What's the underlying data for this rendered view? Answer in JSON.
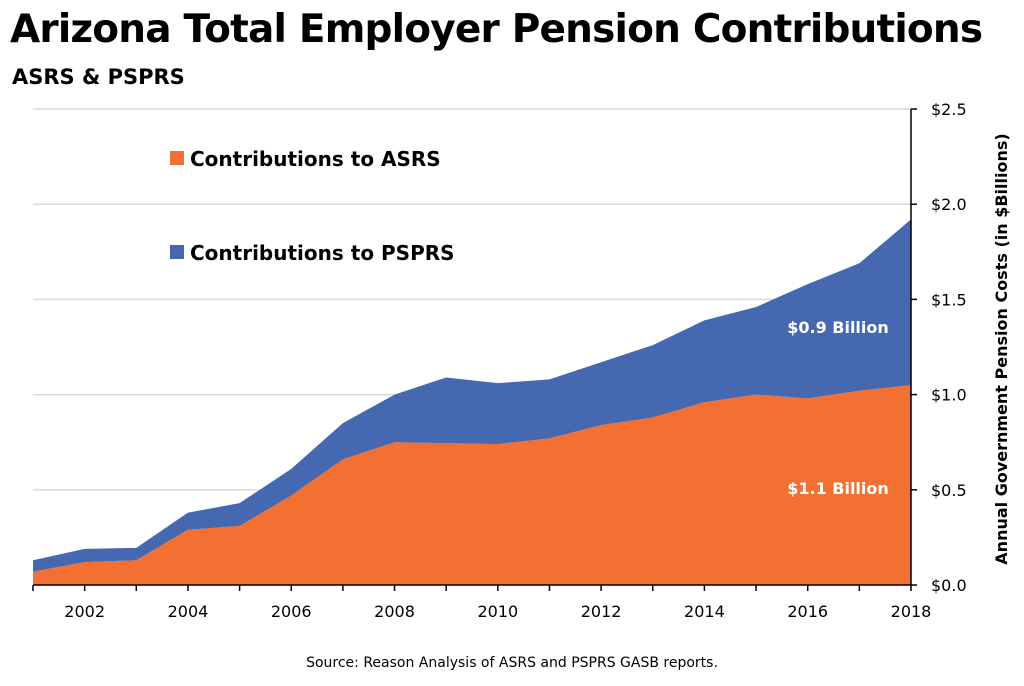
{
  "chart_data": {
    "type": "area",
    "stacked": true,
    "title": "Arizona Total Employer Pension Contributions",
    "subtitle": "ASRS & PSPRS",
    "ylabel": "Annual Government Pension Costs (in $Billions)",
    "xlabel": "",
    "x": [
      2001,
      2002,
      2003,
      2004,
      2005,
      2006,
      2007,
      2008,
      2009,
      2010,
      2011,
      2012,
      2013,
      2014,
      2015,
      2016,
      2017,
      2018
    ],
    "xlim": [
      2001,
      2018
    ],
    "ylim": [
      0,
      2.5
    ],
    "x_ticks": [
      "2002",
      "2004",
      "2006",
      "2008",
      "2010",
      "2012",
      "2014",
      "2016",
      "2018"
    ],
    "y_ticks": [
      {
        "value": 0,
        "label": "$0.0"
      },
      {
        "value": 0.5,
        "label": "$0.5"
      },
      {
        "value": 1.0,
        "label": "$1.0"
      },
      {
        "value": 1.5,
        "label": "$1.5"
      },
      {
        "value": 2.0,
        "label": "$2.0"
      },
      {
        "value": 2.5,
        "label": "$2.5"
      }
    ],
    "y_axis_side": "right",
    "grid": true,
    "legend_position": "top-left",
    "series": [
      {
        "name": "Contributions to ASRS",
        "color": "#f37032",
        "values": [
          0.07,
          0.12,
          0.13,
          0.29,
          0.31,
          0.47,
          0.66,
          0.75,
          0.745,
          0.74,
          0.77,
          0.84,
          0.88,
          0.96,
          1.0,
          0.98,
          1.02,
          1.05
        ]
      },
      {
        "name": "Contributions to PSPRS",
        "color": "#4668b1",
        "values": [
          0.06,
          0.07,
          0.065,
          0.09,
          0.12,
          0.14,
          0.19,
          0.25,
          0.345,
          0.32,
          0.31,
          0.33,
          0.38,
          0.43,
          0.46,
          0.6,
          0.67,
          0.87
        ]
      }
    ],
    "annotations": [
      {
        "text": "$0.9 Billion",
        "series": "Contributions to PSPRS"
      },
      {
        "text": "$1.1 Billion",
        "series": "Contributions to ASRS"
      }
    ],
    "source": "Source: Reason Analysis of ASRS and PSPRS GASB reports."
  }
}
